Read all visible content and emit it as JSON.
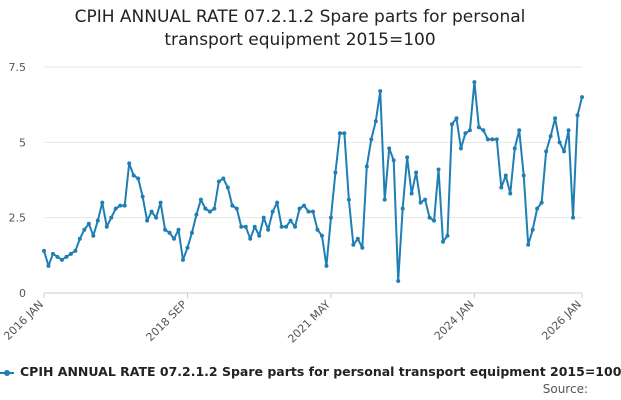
{
  "chart_data": {
    "type": "line",
    "title": "CPIH ANNUAL RATE 07.2.1.2 Spare parts for personal transport equipment 2015=100",
    "title_lines": [
      "CPIH ANNUAL RATE 07.2.1.2 Spare parts for personal",
      "transport equipment 2015=100"
    ],
    "xlabel": "",
    "ylabel": "",
    "ylim": [
      0,
      7.5
    ],
    "yticks": [
      0,
      2.5,
      5,
      7.5
    ],
    "ytick_labels": [
      "0",
      "2.5",
      "5",
      "7.5"
    ],
    "xtick_labels": [
      "2016 JAN",
      "2018 SEP",
      "2021 MAY",
      "2024 JAN",
      "2026 JAN"
    ],
    "xtick_index": [
      0,
      32,
      64,
      96,
      120
    ],
    "grid": true,
    "legend_position": "bottom",
    "series": [
      {
        "name": "CPIH ANNUAL RATE 07.2.1.2 Spare parts for personal transport equipment 2015=100",
        "color": "#1f7fb4",
        "values": [
          1.4,
          0.9,
          1.3,
          1.2,
          1.1,
          1.2,
          1.3,
          1.4,
          1.8,
          2.1,
          2.3,
          1.9,
          2.4,
          3.0,
          2.2,
          2.5,
          2.8,
          2.9,
          2.9,
          4.3,
          3.9,
          3.8,
          3.2,
          2.4,
          2.7,
          2.5,
          3.0,
          2.1,
          2.0,
          1.8,
          2.1,
          1.1,
          1.5,
          2.0,
          2.6,
          3.1,
          2.8,
          2.7,
          2.8,
          3.7,
          3.8,
          3.5,
          2.9,
          2.8,
          2.2,
          2.2,
          1.8,
          2.2,
          1.9,
          2.5,
          2.1,
          2.7,
          3.0,
          2.2,
          2.2,
          2.4,
          2.2,
          2.8,
          2.9,
          2.7,
          2.7,
          2.1,
          1.9,
          0.9,
          2.5,
          4.0,
          5.3,
          5.3,
          3.1,
          1.6,
          1.8,
          1.5,
          4.2,
          5.1,
          5.7,
          6.7,
          3.1,
          4.8,
          4.4,
          0.4,
          2.8,
          4.5,
          3.3,
          4.0,
          3.0,
          3.1,
          2.5,
          2.4,
          4.1,
          1.7,
          1.9,
          5.6,
          5.8,
          4.8,
          5.3,
          5.4,
          7.0,
          5.5,
          5.4,
          5.1,
          5.1,
          5.1,
          3.5,
          3.9,
          3.3,
          4.8,
          5.4,
          3.9,
          1.6,
          2.1,
          2.8,
          3.0,
          4.7,
          5.2,
          5.8,
          5.0,
          4.7,
          5.4,
          2.5,
          5.9,
          6.5
        ]
      }
    ]
  },
  "legend": {
    "label": "CPIH ANNUAL RATE 07.2.1.2 Spare parts for personal transport equipment 2015=100"
  },
  "source_text": "Source:",
  "colors": {
    "line": "#1f7fb4",
    "grid": "#e6e6e6",
    "axis": "#cccccc"
  }
}
